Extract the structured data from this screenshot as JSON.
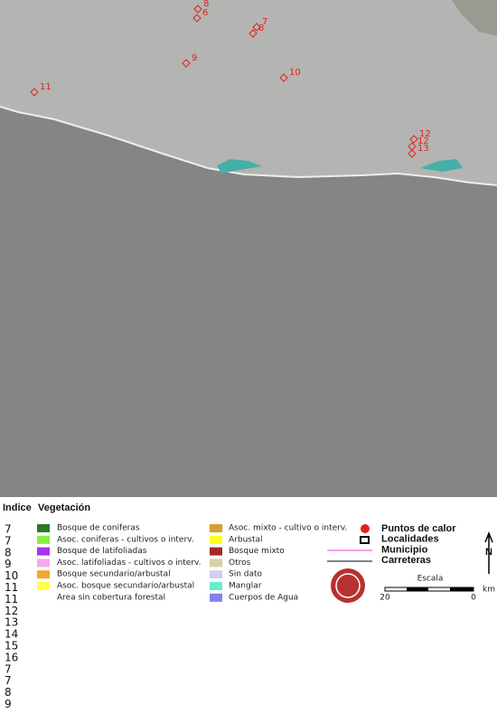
{
  "map": {
    "hotspots": [
      "8",
      "6",
      "7",
      "8",
      "9",
      "10",
      "11",
      "12",
      "12",
      "13"
    ]
  },
  "legend": {
    "index_title": "Indice",
    "vegetation_title": "Vegetación",
    "index_values": [
      7,
      7,
      8,
      9,
      10,
      11,
      11,
      12,
      13,
      14,
      15,
      16,
      7,
      7,
      8,
      9
    ],
    "vegetation": [
      {
        "name": "Bosque de coniferas",
        "color": "#2a7a2a"
      },
      {
        "name": "Asoc. coniferas - cultivos o interv.",
        "color": "#88ee44"
      },
      {
        "name": "Bosque de latifoliadas",
        "color": "#aa33ee"
      },
      {
        "name": "Asoc. latifoliadas - cultivos o interv.",
        "color": "#f8a8e8"
      },
      {
        "name": "Bosque secundario/arbustal",
        "color": "#f4a830"
      },
      {
        "name": "Asoc. bosque secundario/arbustal",
        "color": "#ffff44"
      },
      {
        "name": "Area sin cobertura forestal",
        "color": null
      },
      {
        "name": "Asoc. mixto - cultivo o interv.",
        "color": "#d4a030"
      },
      {
        "name": "Arbustal",
        "color": "#ffff22"
      },
      {
        "name": "Bosque mixto",
        "color": "#a82828"
      },
      {
        "name": "Otros",
        "color": "#d8d0a8"
      },
      {
        "name": "Sin dato",
        "color": "#d0d0f0"
      },
      {
        "name": "Manglar",
        "color": "#66eecc"
      },
      {
        "name": "Cuerpos de Agua",
        "color": "#8080f0"
      }
    ],
    "symbols": [
      "Puntos de calor",
      "Localidades",
      "Municipio",
      "Carreteras"
    ],
    "scale": {
      "title": "Escala",
      "left": "20",
      "right": "0",
      "unit": "km"
    },
    "north": "N"
  }
}
